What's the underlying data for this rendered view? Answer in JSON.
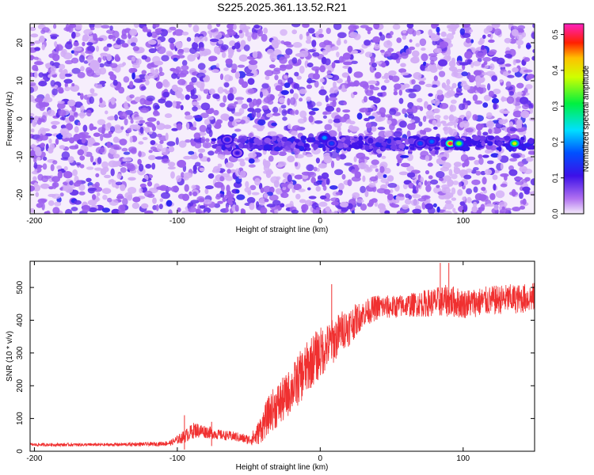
{
  "figure": {
    "title": "S225.2025.361.13.52.R21"
  },
  "chart_data": [
    {
      "type": "heatmap",
      "xlabel": "Height of straight line (km)",
      "ylabel": "Frequency (Hz)",
      "xlim": [
        -203,
        150
      ],
      "ylim": [
        -25,
        25
      ],
      "xticks": [
        -200,
        -100,
        0,
        100
      ],
      "xtick_labels": [
        "-200",
        "-100",
        "0",
        "100"
      ],
      "yticks": [
        -20,
        -10,
        0,
        10,
        20
      ],
      "ytick_labels": [
        "-20",
        "-10",
        "0",
        "10",
        "20"
      ],
      "colorbar": {
        "label": "Normalized spectral amplitude",
        "range": [
          0,
          0.53
        ],
        "ticks": [
          0.0,
          0.1,
          0.2,
          0.3,
          0.4,
          0.5
        ],
        "tick_labels": [
          "0.0",
          "0.1",
          "0.2",
          "0.3",
          "0.4",
          "0.5"
        ],
        "colormap": "rainbow (white-purple-blue-cyan-green-yellow-red-magenta)"
      },
      "signal_band": {
        "frequency_hz": -6.5,
        "description_points": [
          {
            "x": -65,
            "y": -5.5,
            "value": 0.12
          },
          {
            "x": -58,
            "y": -9,
            "value": 0.1
          },
          {
            "x": 3,
            "y": -5,
            "value": 0.2
          },
          {
            "x": 8,
            "y": -6.5,
            "value": 0.15
          },
          {
            "x": 70,
            "y": -6.5,
            "value": 0.16
          },
          {
            "x": 78,
            "y": -6,
            "value": 0.18
          },
          {
            "x": 91,
            "y": -6.5,
            "value": 0.5
          },
          {
            "x": 97,
            "y": -6.5,
            "value": 0.35
          },
          {
            "x": 136,
            "y": -6.5,
            "value": 0.4
          }
        ]
      },
      "gap_region_x": [
        87,
        95
      ]
    },
    {
      "type": "line",
      "xlabel": "Height of straight line (km)",
      "ylabel": "SNR (10 * v/v)",
      "xlim": [
        -203,
        150
      ],
      "ylim": [
        0,
        580
      ],
      "xticks": [
        -200,
        -100,
        0,
        100
      ],
      "xtick_labels": [
        "-200",
        "-100",
        "0",
        "100"
      ],
      "yticks": [
        0,
        100,
        200,
        300,
        400,
        500
      ],
      "ytick_labels": [
        "0",
        "100",
        "200",
        "300",
        "400",
        "500"
      ],
      "color": "#f03030",
      "series": [
        {
          "x": [
            -203,
            -150,
            -115,
            -105,
            -95,
            -88,
            -80,
            -70,
            -60,
            -50,
            -45,
            -40,
            -35,
            -30,
            -25,
            -20,
            -15,
            -10,
            -5,
            0,
            5,
            10,
            15,
            20,
            25,
            30,
            35,
            40,
            50,
            60,
            70,
            80,
            90,
            100,
            110,
            120,
            130,
            140,
            150
          ],
          "values": [
            20,
            20,
            22,
            25,
            45,
            65,
            60,
            50,
            45,
            35,
            45,
            80,
            120,
            140,
            160,
            190,
            220,
            250,
            280,
            300,
            320,
            340,
            370,
            380,
            400,
            420,
            430,
            440,
            440,
            445,
            450,
            455,
            460,
            450,
            455,
            460,
            465,
            465,
            470
          ],
          "noise_amplitude": [
            5,
            5,
            6,
            8,
            20,
            25,
            20,
            15,
            15,
            15,
            30,
            50,
            60,
            70,
            70,
            70,
            80,
            80,
            80,
            80,
            70,
            70,
            60,
            60,
            50,
            40,
            40,
            40,
            35,
            35,
            40,
            45,
            50,
            45,
            45,
            45,
            45,
            45,
            45
          ]
        }
      ],
      "spikes": [
        {
          "x": -95,
          "y": 110
        },
        {
          "x": -76,
          "y": 90
        },
        {
          "x": -22,
          "y": 230
        },
        {
          "x": -5,
          "y": 300
        },
        {
          "x": 8,
          "y": 510
        },
        {
          "x": 84,
          "y": 575
        },
        {
          "x": 90,
          "y": 575
        }
      ]
    }
  ]
}
